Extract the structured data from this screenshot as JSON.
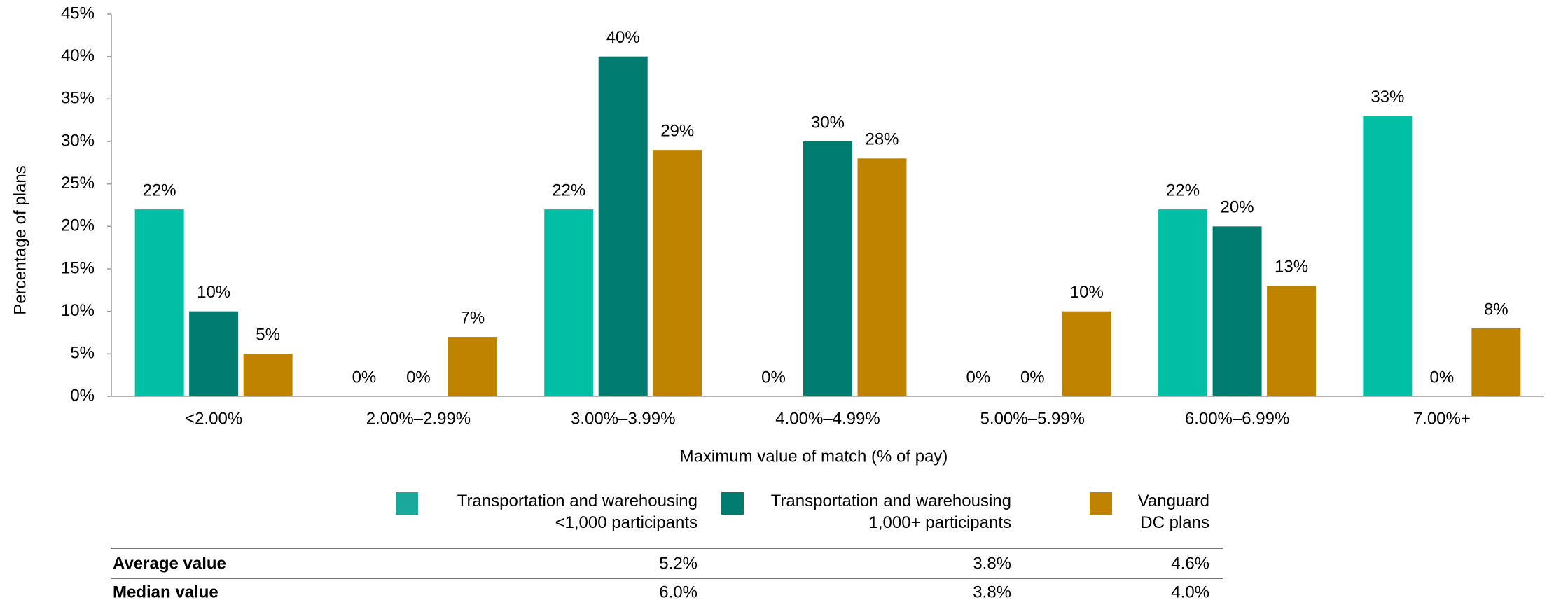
{
  "chart_data": {
    "type": "bar",
    "x_label": "Maximum value of match (% of pay)",
    "y_label": "Percentage of plans",
    "categories": [
      "<2.00%",
      "2.00%–2.99%",
      "3.00%–3.99%",
      "4.00%–4.99%",
      "5.00%–5.99%",
      "6.00%–6.99%",
      "7.00%+"
    ],
    "series": [
      {
        "name": "Transportation and warehousing\n<1,000 participants",
        "color": "#00bfa5",
        "legend_color": "#1aa89a",
        "values": [
          22,
          0,
          22,
          0,
          0,
          22,
          33
        ],
        "value_labels": [
          "22%",
          "0%",
          "22%",
          "0%",
          "0%",
          "22%",
          "33%"
        ]
      },
      {
        "name": "Transportation and warehousing\n1,000+ participants",
        "color": "#007b70",
        "values": [
          10,
          0,
          40,
          30,
          0,
          20,
          0
        ],
        "value_labels": [
          "10%",
          "0%",
          "40%",
          "30%",
          "0%",
          "20%",
          "0%"
        ]
      },
      {
        "name": "Vanguard\nDC plans",
        "color": "#c08300",
        "values": [
          5,
          7,
          29,
          28,
          10,
          13,
          8
        ],
        "value_labels": [
          "5%",
          "7%",
          "29%",
          "28%",
          "10%",
          "13%",
          "8%"
        ]
      }
    ],
    "ylim": [
      0,
      45
    ],
    "yticks": [
      {
        "value": 0,
        "label": "0%"
      },
      {
        "value": 5,
        "label": "5%"
      },
      {
        "value": 10,
        "label": "10%"
      },
      {
        "value": 15,
        "label": "15%"
      },
      {
        "value": 20,
        "label": "20%"
      },
      {
        "value": 25,
        "label": "25%"
      },
      {
        "value": 30,
        "label": "30%"
      },
      {
        "value": 35,
        "label": "35%"
      },
      {
        "value": 40,
        "label": "40%"
      },
      {
        "value": 45,
        "label": "45%"
      }
    ]
  },
  "table": {
    "rows": [
      [
        "Average value",
        "5.2%",
        "3.8%",
        "4.6%"
      ],
      [
        "Median value",
        "6.0%",
        "3.8%",
        "4.0%"
      ]
    ]
  }
}
